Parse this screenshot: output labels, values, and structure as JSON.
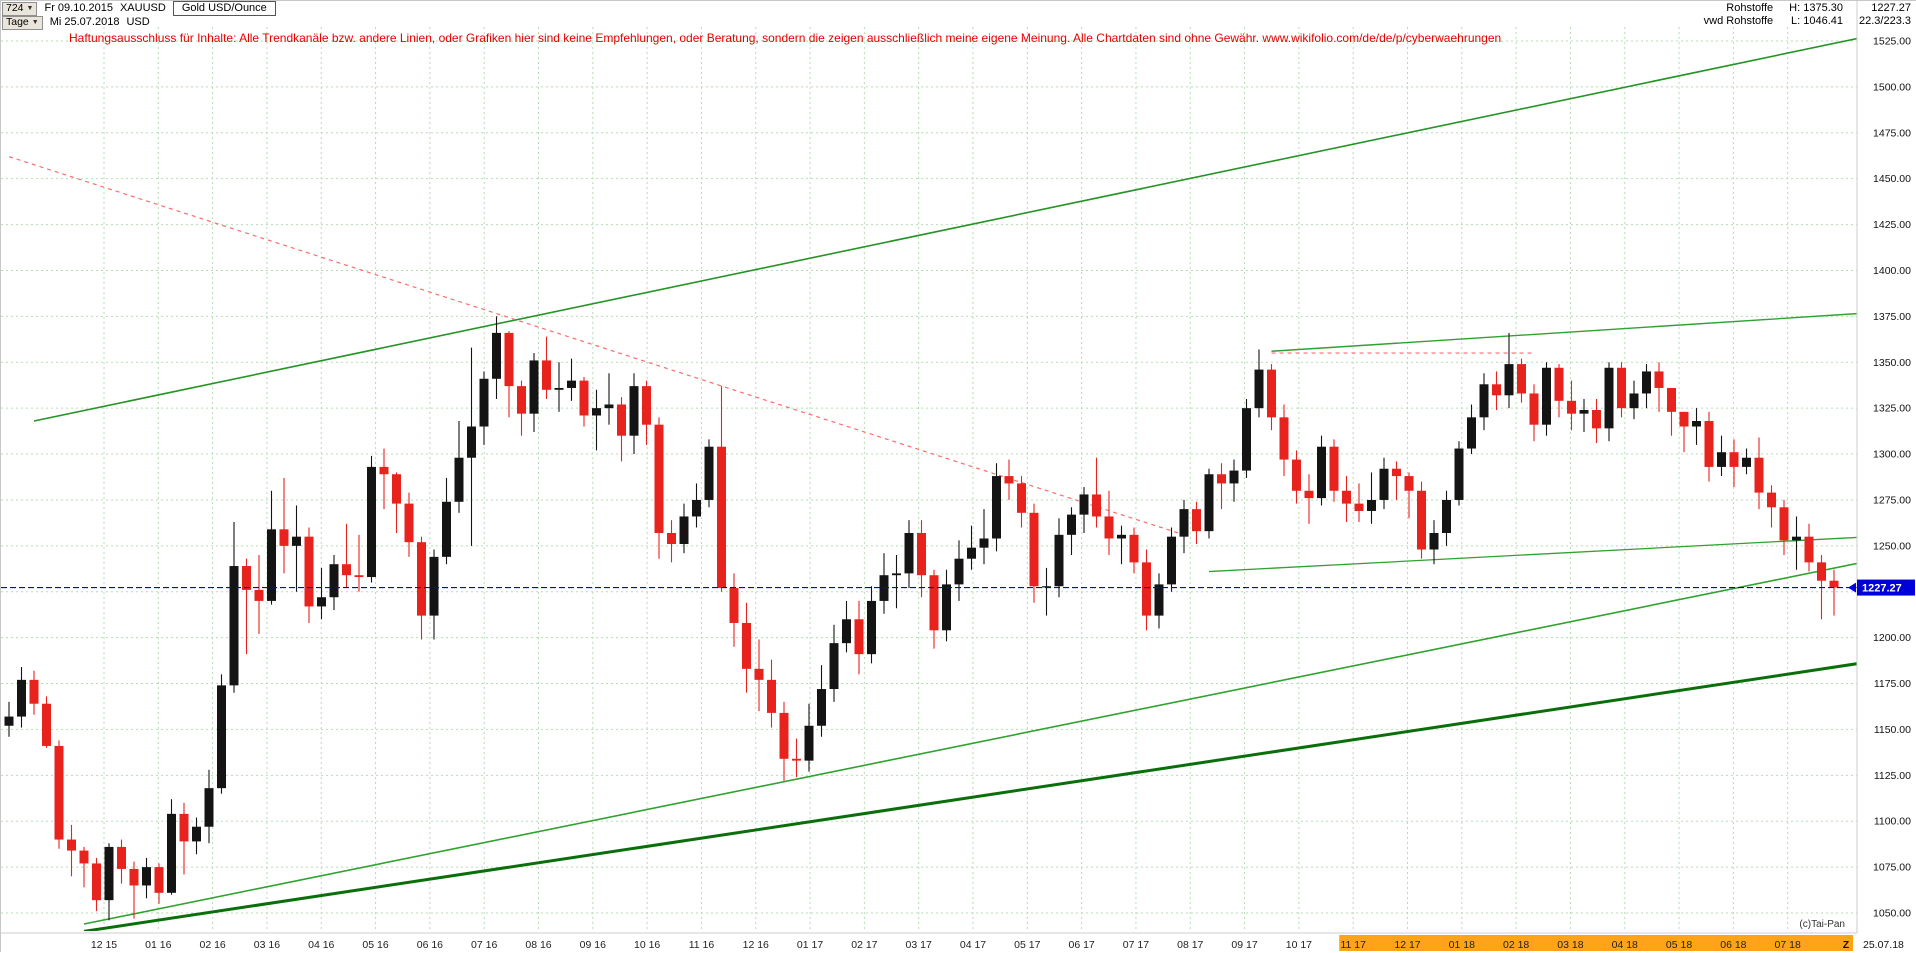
{
  "toolbar": {
    "bars_count": "724",
    "start_date": "Fr 09.10.2015",
    "symbol": "XAUUSD",
    "timeframe": "Tage",
    "end_date": "Mi 25.07.2018",
    "currency": "USD",
    "instrument": "Gold USD/Ounce"
  },
  "quote_panel": {
    "name": "Rohstoffe",
    "source": "vwd Rohstoffe",
    "high": "H: 1375.30",
    "low": "L: 1046.41",
    "last": "1227.27",
    "change": "22.3/223.3"
  },
  "disclaimer": "Haftungsausschluss für Inhalte: Alle Trendkanäle bzw. andere Linien, oder Grafiken hier sind keine Empfehlungen, oder Beratung, sondern die zeigen ausschließlich meine eigene Meinung. Alle Chartdaten sind ohne Gewähr.  www.wikifolio.com/de/de/p/cyberwaehrungen",
  "credit": "(c)Tai-Pan",
  "chart_data": {
    "type": "candlestick",
    "title": "Gold USD/Ounce",
    "symbol": "XAUUSD",
    "timeframe_unit": "Tage",
    "period_start": "09.10.2015",
    "period_end": "25.07.2018",
    "last_price": 1227.27,
    "last_label": "1227.27",
    "period_high": 1375.3,
    "period_low": 1046.41,
    "first_open": 1152,
    "y_axis": {
      "min": 1050,
      "max": 1525,
      "step": 25,
      "labels": [
        "1525.00",
        "1500.00",
        "1475.00",
        "1450.00",
        "1425.00",
        "1400.00",
        "1375.00",
        "1350.00",
        "1325.00",
        "1300.00",
        "1275.00",
        "1250.00",
        "1225.00",
        "1200.00",
        "1175.00",
        "1150.00",
        "1125.00",
        "1100.00",
        "1075.00",
        "1050.00"
      ]
    },
    "x_axis": {
      "labels": [
        "12 15",
        "01 16",
        "02 16",
        "03 16",
        "04 16",
        "05 16",
        "06 16",
        "07 16",
        "08 16",
        "09 16",
        "10 16",
        "11 16",
        "12 16",
        "01 17",
        "02 17",
        "03 17",
        "04 17",
        "05 17",
        "06 17",
        "07 17",
        "08 17",
        "09 17",
        "10 17",
        "11 17",
        "12 17",
        "01 18",
        "02 18",
        "03 18",
        "04 18",
        "05 18",
        "06 18",
        "07 18"
      ],
      "end_label": "25.07.18",
      "z_marker": "Z",
      "first_label_offset": 7.6,
      "label_spacing": 4.345,
      "highlight_start_label_index": 23
    },
    "colors": {
      "up": "#141414",
      "down": "#e8231e",
      "grid": "#b5ddb5",
      "current_line": "#0000d8",
      "highlight_band": "#ffa31a",
      "axis_text": "#111111"
    },
    "candles": [
      [
        1165,
        1146,
        1157
      ],
      [
        1184,
        1151,
        1177
      ],
      [
        1182,
        1158,
        1164
      ],
      [
        1168,
        1140,
        1141
      ],
      [
        1144,
        1085,
        1090
      ],
      [
        1098,
        1070,
        1084
      ],
      [
        1086,
        1064,
        1077
      ],
      [
        1080,
        1051,
        1057
      ],
      [
        1088,
        1046,
        1086
      ],
      [
        1090,
        1066,
        1074
      ],
      [
        1078,
        1047,
        1065
      ],
      [
        1080,
        1058,
        1075
      ],
      [
        1077,
        1055,
        1061
      ],
      [
        1112,
        1060,
        1104
      ],
      [
        1110,
        1071,
        1089
      ],
      [
        1102,
        1082,
        1097
      ],
      [
        1128,
        1088,
        1118
      ],
      [
        1180,
        1115,
        1174
      ],
      [
        1263,
        1170,
        1239
      ],
      [
        1243,
        1191,
        1226
      ],
      [
        1245,
        1202,
        1220
      ],
      [
        1280,
        1218,
        1259
      ],
      [
        1287,
        1235,
        1250
      ],
      [
        1272,
        1225,
        1255
      ],
      [
        1260,
        1208,
        1217
      ],
      [
        1238,
        1210,
        1222
      ],
      [
        1245,
        1215,
        1240
      ],
      [
        1262,
        1227,
        1234
      ],
      [
        1256,
        1225,
        1233
      ],
      [
        1299,
        1230,
        1293
      ],
      [
        1303,
        1270,
        1289
      ],
      [
        1290,
        1257,
        1273
      ],
      [
        1279,
        1244,
        1252
      ],
      [
        1255,
        1199,
        1212
      ],
      [
        1248,
        1199,
        1244
      ],
      [
        1287,
        1240,
        1274
      ],
      [
        1318,
        1268,
        1298
      ],
      [
        1358,
        1250,
        1315
      ],
      [
        1345,
        1305,
        1341
      ],
      [
        1375,
        1330,
        1366
      ],
      [
        1367,
        1320,
        1337
      ],
      [
        1340,
        1310,
        1322
      ],
      [
        1355,
        1312,
        1351
      ],
      [
        1364,
        1330,
        1335
      ],
      [
        1350,
        1323,
        1336
      ],
      [
        1352,
        1329,
        1340
      ],
      [
        1342,
        1315,
        1321
      ],
      [
        1335,
        1302,
        1325
      ],
      [
        1344,
        1316,
        1327
      ],
      [
        1331,
        1296,
        1310
      ],
      [
        1344,
        1300,
        1337
      ],
      [
        1340,
        1305,
        1316
      ],
      [
        1320,
        1243,
        1257
      ],
      [
        1264,
        1241,
        1251
      ],
      [
        1273,
        1246,
        1266
      ],
      [
        1284,
        1260,
        1275
      ],
      [
        1308,
        1271,
        1304
      ],
      [
        1337,
        1225,
        1227
      ],
      [
        1235,
        1195,
        1208
      ],
      [
        1219,
        1170,
        1183
      ],
      [
        1199,
        1160,
        1177
      ],
      [
        1188,
        1151,
        1159
      ],
      [
        1165,
        1122,
        1134
      ],
      [
        1145,
        1124,
        1133
      ],
      [
        1164,
        1127,
        1152
      ],
      [
        1185,
        1146,
        1172
      ],
      [
        1207,
        1165,
        1197
      ],
      [
        1220,
        1192,
        1210
      ],
      [
        1220,
        1180,
        1191
      ],
      [
        1228,
        1186,
        1220
      ],
      [
        1246,
        1213,
        1234
      ],
      [
        1245,
        1216,
        1235
      ],
      [
        1264,
        1227,
        1257
      ],
      [
        1264,
        1222,
        1234
      ],
      [
        1237,
        1194,
        1204
      ],
      [
        1237,
        1198,
        1229
      ],
      [
        1253,
        1220,
        1243
      ],
      [
        1261,
        1237,
        1249
      ],
      [
        1270,
        1240,
        1254
      ],
      [
        1295,
        1247,
        1288
      ],
      [
        1297,
        1275,
        1284
      ],
      [
        1288,
        1260,
        1268
      ],
      [
        1273,
        1219,
        1228
      ],
      [
        1238,
        1212,
        1228
      ],
      [
        1265,
        1222,
        1256
      ],
      [
        1271,
        1245,
        1267
      ],
      [
        1282,
        1257,
        1278
      ],
      [
        1298,
        1260,
        1266
      ],
      [
        1280,
        1245,
        1254
      ],
      [
        1261,
        1240,
        1256
      ],
      [
        1260,
        1235,
        1241
      ],
      [
        1248,
        1204,
        1212
      ],
      [
        1235,
        1205,
        1229
      ],
      [
        1260,
        1225,
        1255
      ],
      [
        1275,
        1246,
        1270
      ],
      [
        1274,
        1251,
        1258
      ],
      [
        1292,
        1254,
        1289
      ],
      [
        1295,
        1270,
        1284
      ],
      [
        1297,
        1274,
        1291
      ],
      [
        1330,
        1287,
        1325
      ],
      [
        1357,
        1320,
        1346
      ],
      [
        1349,
        1313,
        1320
      ],
      [
        1327,
        1288,
        1297
      ],
      [
        1302,
        1273,
        1280
      ],
      [
        1289,
        1262,
        1276
      ],
      [
        1310,
        1272,
        1304
      ],
      [
        1308,
        1274,
        1280
      ],
      [
        1288,
        1263,
        1273
      ],
      [
        1284,
        1263,
        1269
      ],
      [
        1290,
        1262,
        1275
      ],
      [
        1298,
        1270,
        1292
      ],
      [
        1296,
        1275,
        1288
      ],
      [
        1290,
        1265,
        1280
      ],
      [
        1285,
        1243,
        1248
      ],
      [
        1264,
        1240,
        1257
      ],
      [
        1280,
        1250,
        1275
      ],
      [
        1307,
        1272,
        1303
      ],
      [
        1327,
        1300,
        1320
      ],
      [
        1344,
        1313,
        1338
      ],
      [
        1345,
        1324,
        1332
      ],
      [
        1366,
        1325,
        1349
      ],
      [
        1352,
        1328,
        1333
      ],
      [
        1338,
        1307,
        1316
      ],
      [
        1350,
        1310,
        1347
      ],
      [
        1349,
        1320,
        1329
      ],
      [
        1340,
        1313,
        1322
      ],
      [
        1330,
        1312,
        1324
      ],
      [
        1330,
        1306,
        1314
      ],
      [
        1350,
        1307,
        1347
      ],
      [
        1350,
        1320,
        1325
      ],
      [
        1340,
        1319,
        1333
      ],
      [
        1349,
        1325,
        1345
      ],
      [
        1350,
        1323,
        1336
      ],
      [
        1336,
        1310,
        1323
      ],
      [
        1322,
        1301,
        1315
      ],
      [
        1325,
        1305,
        1318
      ],
      [
        1323,
        1285,
        1293
      ],
      [
        1310,
        1288,
        1301
      ],
      [
        1308,
        1282,
        1293
      ],
      [
        1303,
        1289,
        1298
      ],
      [
        1309,
        1270,
        1279
      ],
      [
        1283,
        1260,
        1271
      ],
      [
        1275,
        1245,
        1253
      ],
      [
        1266,
        1237,
        1255
      ],
      [
        1262,
        1236,
        1241
      ],
      [
        1245,
        1210,
        1231
      ],
      [
        1237,
        1212,
        1227.27
      ]
    ],
    "trendlines": [
      {
        "name": "trendline-rising-resistance-longterm",
        "i1": 2,
        "p1": 1318,
        "i2": 149,
        "p2": 1528,
        "color": "#259325",
        "width": 1.6
      },
      {
        "name": "trendline-rising-support-thin",
        "i1": 6,
        "p1": 1044,
        "i2": 149,
        "p2": 1242,
        "color": "#2fa22f",
        "width": 1.6
      },
      {
        "name": "trendline-rising-support-thick",
        "i1": 6,
        "p1": 1040,
        "i2": 149,
        "p2": 1187,
        "color": "#0a6f0a",
        "width": 3
      },
      {
        "name": "trendline-recent-highs-resistance",
        "i1": 101,
        "p1": 1356,
        "i2": 149,
        "p2": 1377,
        "color": "#2fa22f",
        "width": 1.4
      },
      {
        "name": "trendline-minor-support-broken",
        "i1": 96,
        "p1": 1236,
        "i2": 149,
        "p2": 1255,
        "color": "#2fa22f",
        "width": 1.3
      },
      {
        "name": "trendline-declining-resistance-red",
        "i1": 0,
        "p1": 1462,
        "i2": 94,
        "p2": 1256,
        "color": "#ff6b6b",
        "width": 1.2,
        "dash": "4 4"
      },
      {
        "name": "trendline-horizontal-red",
        "i1": 101,
        "p1": 1355,
        "i2": 122,
        "p2": 1355,
        "color": "#ff6b6b",
        "width": 1.2,
        "dash": "4 4"
      }
    ]
  }
}
